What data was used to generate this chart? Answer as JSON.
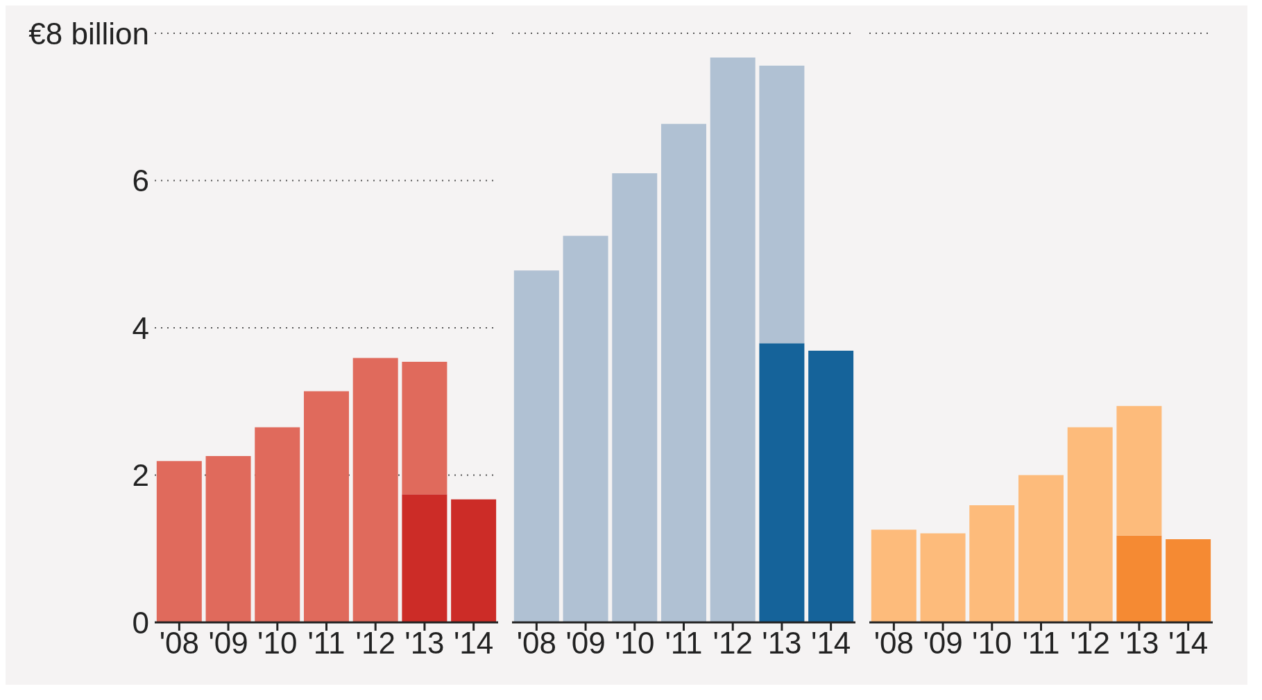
{
  "chart_data": [
    {
      "type": "bar",
      "stacked": true,
      "categories": [
        "'08",
        "'09",
        "'10",
        "'11",
        "'12",
        "'13",
        "'14"
      ],
      "series": [
        {
          "color": "#cc2c27",
          "values": [
            null,
            null,
            null,
            null,
            null,
            1.74,
            1.67
          ]
        },
        {
          "color": "#e06a5c",
          "values": [
            2.19,
            2.26,
            2.65,
            3.14,
            3.59,
            1.8,
            null
          ]
        }
      ],
      "ylim": [
        0,
        8
      ],
      "yticks": [
        0,
        2,
        4,
        6,
        {
          "value": 8,
          "label": "€8 billion"
        }
      ],
      "grid": "y"
    },
    {
      "type": "bar",
      "stacked": true,
      "categories": [
        "'08",
        "'09",
        "'10",
        "'11",
        "'12",
        "'13",
        "'14"
      ],
      "series": [
        {
          "color": "#15639a",
          "values": [
            null,
            null,
            null,
            null,
            null,
            3.79,
            3.69
          ]
        },
        {
          "color": "#b0c1d3",
          "values": [
            4.78,
            5.25,
            6.1,
            6.77,
            7.67,
            3.77,
            null
          ]
        }
      ],
      "ylim": [
        0,
        8
      ],
      "yticks": [
        0,
        2,
        4,
        6,
        8
      ],
      "grid": "y",
      "tick_labels": "x"
    },
    {
      "type": "bar",
      "stacked": true,
      "categories": [
        "'08",
        "'09",
        "'10",
        "'11",
        "'12",
        "'13",
        "'14"
      ],
      "series": [
        {
          "color": "#f58a33",
          "values": [
            null,
            null,
            null,
            null,
            null,
            1.18,
            1.13
          ]
        },
        {
          "color": "#fdbb7b",
          "values": [
            1.26,
            1.21,
            1.59,
            2.0,
            2.65,
            1.76,
            null
          ]
        }
      ],
      "ylim": [
        0,
        8
      ],
      "yticks": [
        0,
        2,
        4,
        6,
        8
      ],
      "grid": "y",
      "tick_labels": "x"
    }
  ]
}
